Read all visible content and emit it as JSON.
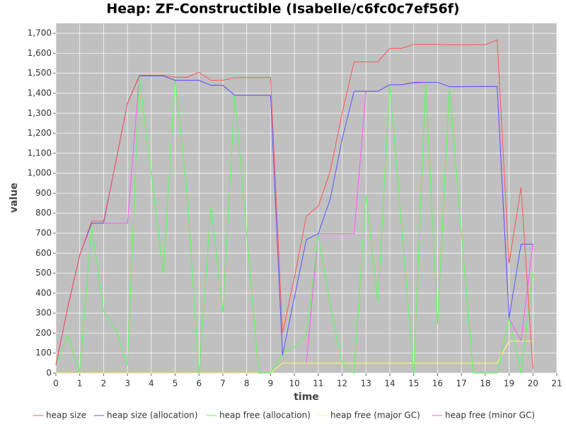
{
  "chart_data": {
    "type": "line",
    "title": "Heap: ZF-Constructible (Isabelle/c6fc0c7ef56f)",
    "x_label": "time",
    "y_label": "value",
    "x": [
      0,
      0.5,
      1,
      1.5,
      2,
      2.5,
      3,
      3.5,
      4,
      4.5,
      5,
      5.5,
      6,
      6.5,
      7,
      7.5,
      8,
      8.5,
      9,
      9.5,
      10,
      10.5,
      11,
      11.5,
      12,
      12.5,
      13,
      13.5,
      14,
      14.5,
      15,
      15.5,
      16,
      16.5,
      17,
      17.5,
      18,
      18.5,
      19,
      19.5,
      20
    ],
    "series": [
      {
        "name": "heap size",
        "color": "#ff5555",
        "values": [
          40,
          330,
          590,
          760,
          760,
          1050,
          1350,
          1490,
          1490,
          1490,
          1480,
          1480,
          1505,
          1465,
          1465,
          1478,
          1478,
          1478,
          1478,
          200,
          480,
          785,
          835,
          1010,
          1300,
          1557,
          1557,
          1557,
          1625,
          1625,
          1645,
          1645,
          1645,
          1642,
          1642,
          1643,
          1643,
          1667,
          550,
          930,
          20
        ]
      },
      {
        "name": "heap size (allocation)",
        "color": "#5555ff",
        "values": [
          40,
          330,
          590,
          750,
          750,
          1050,
          1350,
          1487,
          1487,
          1487,
          1465,
          1465,
          1465,
          1440,
          1440,
          1390,
          1390,
          1390,
          1390,
          90,
          380,
          668,
          698,
          870,
          1170,
          1410,
          1410,
          1410,
          1443,
          1443,
          1455,
          1455,
          1455,
          1433,
          1433,
          1434,
          1434,
          1434,
          275,
          645,
          645
        ]
      },
      {
        "name": "heap free (allocation)",
        "color": "#55ff55",
        "values": [
          40,
          190,
          5,
          740,
          310,
          220,
          40,
          1480,
          1000,
          500,
          1470,
          900,
          0,
          835,
          305,
          1390,
          700,
          0,
          0,
          100,
          130,
          190,
          690,
          340,
          50,
          0,
          890,
          355,
          1440,
          720,
          0,
          1455,
          245,
          1430,
          700,
          0,
          0,
          0,
          275,
          0,
          500
        ]
      },
      {
        "name": "heap free (major GC)",
        "color": "#ffff55",
        "values": [
          0,
          0,
          0,
          0,
          0,
          0,
          0,
          0,
          0,
          0,
          0,
          0,
          0,
          0,
          0,
          0,
          0,
          0,
          0,
          50,
          50,
          50,
          50,
          50,
          50,
          50,
          50,
          50,
          50,
          50,
          50,
          50,
          50,
          50,
          50,
          50,
          50,
          50,
          160,
          160,
          160
        ]
      },
      {
        "name": "heap free (minor GC)",
        "color": "#ff55ff",
        "values": [
          40,
          330,
          590,
          750,
          750,
          750,
          750,
          1487,
          1487,
          1487,
          1465,
          1465,
          1465,
          1440,
          1440,
          1390,
          1390,
          1390,
          1390,
          null,
          null,
          50,
          698,
          698,
          698,
          698,
          1410,
          1410,
          1443,
          1443,
          1450,
          1455,
          1455,
          1433,
          1433,
          1434,
          1434,
          1434,
          275,
          160,
          645
        ]
      }
    ],
    "xlim": [
      0,
      21
    ],
    "ylim": [
      0,
      1750
    ],
    "xticks": [
      0,
      1,
      2,
      3,
      4,
      5,
      6,
      7,
      8,
      9,
      10,
      11,
      12,
      13,
      14,
      15,
      16,
      17,
      18,
      19,
      20,
      21
    ],
    "yticks": [
      0,
      100,
      200,
      300,
      400,
      500,
      600,
      700,
      800,
      900,
      {
        "value": 1000,
        "label": "1,000"
      },
      {
        "value": 1100,
        "label": "1,100"
      },
      {
        "value": 1200,
        "label": "1,200"
      },
      {
        "value": 1300,
        "label": "1,300"
      },
      {
        "value": 1400,
        "label": "1,400"
      },
      {
        "value": 1500,
        "label": "1,500"
      },
      {
        "value": 1600,
        "label": "1,600"
      },
      {
        "value": 1700,
        "label": "1,700"
      }
    ],
    "grid": true,
    "legend": "bottom"
  }
}
